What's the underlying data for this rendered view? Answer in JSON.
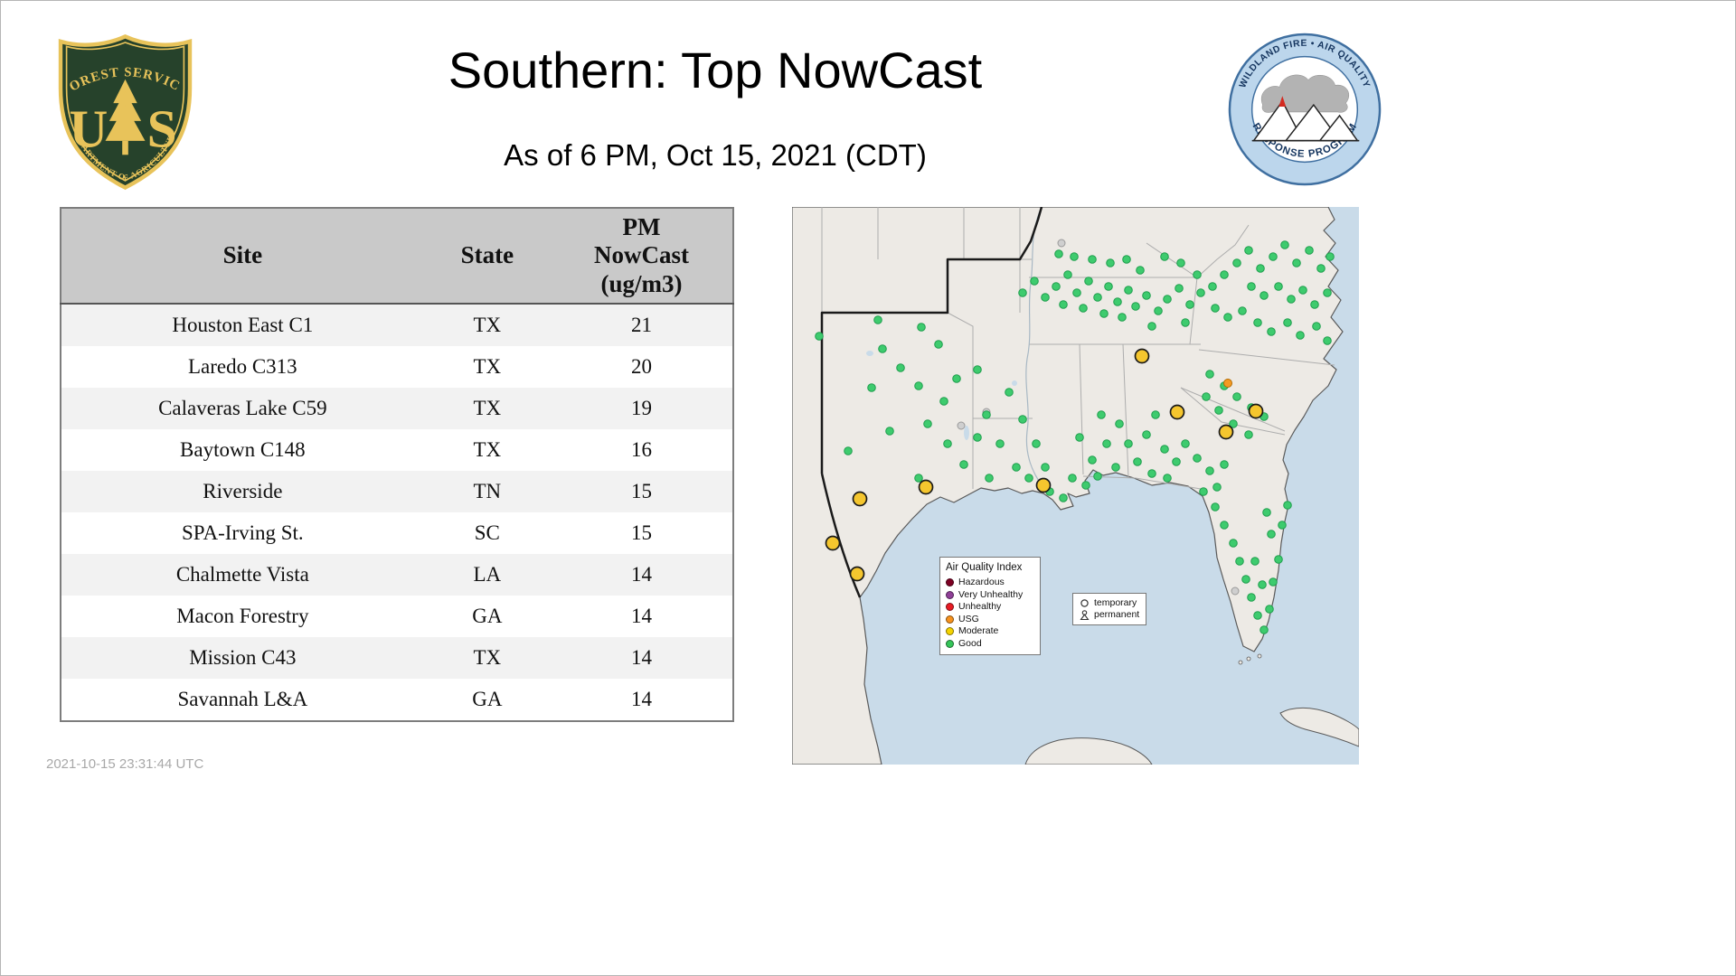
{
  "header": {
    "title": "Southern: Top NowCast",
    "subtitle": "As of  6 PM, Oct 15, 2021 (CDT)"
  },
  "footer": {
    "timestamp": "2021-10-15 23:31:44 UTC"
  },
  "fs_logo": {
    "arc_top": "FOREST SERVICE",
    "letter_u": "U",
    "letter_s": "S",
    "arc_bottom": "DEPARTMENT OF AGRICULTURE"
  },
  "aq_logo": {
    "arc_top": "WILDLAND FIRE • AIR QUALITY",
    "arc_bottom": "RESPONSE PROGRAM"
  },
  "table": {
    "columns": [
      "Site",
      "State",
      "PM\nNowCast\n(ug/m3)"
    ],
    "rows": [
      [
        "Houston East C1",
        "TX",
        "21"
      ],
      [
        "Laredo C313",
        "TX",
        "20"
      ],
      [
        "Calaveras Lake C59",
        "TX",
        "19"
      ],
      [
        "Baytown C148",
        "TX",
        "16"
      ],
      [
        "Riverside",
        "TN",
        "15"
      ],
      [
        "SPA-Irving St.",
        "SC",
        "15"
      ],
      [
        "Chalmette Vista",
        "LA",
        "14"
      ],
      [
        "Macon Forestry",
        "GA",
        "14"
      ],
      [
        "Mission C43",
        "TX",
        "14"
      ],
      [
        "Savannah L&A",
        "GA",
        "14"
      ]
    ]
  },
  "map": {
    "colors": {
      "ocean": "#c9dbe9",
      "land": "#edeae5",
      "region_border": "#1a1a1a",
      "state_border": "#adadad"
    },
    "legend": {
      "title": "Air Quality Index",
      "items": [
        {
          "label": "Hazardous",
          "color": "#7e0023"
        },
        {
          "label": "Very Unhealthy",
          "color": "#8f3f97"
        },
        {
          "label": "Unhealthy",
          "color": "#e81b23"
        },
        {
          "label": "USG",
          "color": "#f7921e"
        },
        {
          "label": "Moderate",
          "color": "#f5d300"
        },
        {
          "label": "Good",
          "color": "#35c559"
        }
      ]
    },
    "marker_legend": {
      "temporary": "temporary",
      "permanent": "permanent"
    },
    "sites": {
      "good": [
        [
          95,
          125
        ],
        [
          30,
          143
        ],
        [
          100,
          157
        ],
        [
          143,
          133
        ],
        [
          162,
          152
        ],
        [
          120,
          178
        ],
        [
          88,
          200
        ],
        [
          140,
          198
        ],
        [
          168,
          215
        ],
        [
          182,
          190
        ],
        [
          150,
          240
        ],
        [
          108,
          248
        ],
        [
          62,
          270
        ],
        [
          172,
          262
        ],
        [
          190,
          285
        ],
        [
          140,
          300
        ],
        [
          205,
          180
        ],
        [
          215,
          230
        ],
        [
          230,
          262
        ],
        [
          248,
          288
        ],
        [
          262,
          300
        ],
        [
          280,
          288
        ],
        [
          270,
          262
        ],
        [
          255,
          235
        ],
        [
          240,
          205
        ],
        [
          285,
          315
        ],
        [
          300,
          322
        ],
        [
          218,
          300
        ],
        [
          205,
          255
        ],
        [
          318,
          255
        ],
        [
          332,
          280
        ],
        [
          348,
          262
        ],
        [
          342,
          230
        ],
        [
          362,
          240
        ],
        [
          372,
          262
        ],
        [
          358,
          288
        ],
        [
          382,
          282
        ],
        [
          392,
          252
        ],
        [
          402,
          230
        ],
        [
          412,
          268
        ],
        [
          425,
          282
        ],
        [
          398,
          295
        ],
        [
          415,
          300
        ],
        [
          255,
          95
        ],
        [
          268,
          82
        ],
        [
          280,
          100
        ],
        [
          292,
          88
        ],
        [
          305,
          75
        ],
        [
          300,
          108
        ],
        [
          315,
          95
        ],
        [
          328,
          82
        ],
        [
          322,
          112
        ],
        [
          338,
          100
        ],
        [
          350,
          88
        ],
        [
          345,
          118
        ],
        [
          360,
          105
        ],
        [
          372,
          92
        ],
        [
          365,
          122
        ],
        [
          380,
          110
        ],
        [
          392,
          98
        ],
        [
          385,
          70
        ],
        [
          370,
          58
        ],
        [
          352,
          62
        ],
        [
          332,
          58
        ],
        [
          312,
          55
        ],
        [
          295,
          52
        ],
        [
          405,
          115
        ],
        [
          398,
          132
        ],
        [
          415,
          102
        ],
        [
          428,
          90
        ],
        [
          440,
          108
        ],
        [
          435,
          128
        ],
        [
          452,
          95
        ],
        [
          448,
          75
        ],
        [
          430,
          62
        ],
        [
          412,
          55
        ],
        [
          465,
          88
        ],
        [
          478,
          75
        ],
        [
          492,
          62
        ],
        [
          505,
          48
        ],
        [
          518,
          68
        ],
        [
          532,
          55
        ],
        [
          545,
          42
        ],
        [
          558,
          62
        ],
        [
          572,
          48
        ],
        [
          585,
          68
        ],
        [
          595,
          55
        ],
        [
          508,
          88
        ],
        [
          522,
          98
        ],
        [
          538,
          88
        ],
        [
          552,
          102
        ],
        [
          565,
          92
        ],
        [
          578,
          108
        ],
        [
          592,
          95
        ],
        [
          468,
          112
        ],
        [
          482,
          122
        ],
        [
          498,
          115
        ],
        [
          515,
          128
        ],
        [
          530,
          138
        ],
        [
          548,
          128
        ],
        [
          562,
          142
        ],
        [
          580,
          132
        ],
        [
          592,
          148
        ],
        [
          462,
          185
        ],
        [
          478,
          198
        ],
        [
          492,
          210
        ],
        [
          508,
          222
        ],
        [
          522,
          232
        ],
        [
          472,
          225
        ],
        [
          488,
          240
        ],
        [
          505,
          252
        ],
        [
          458,
          210
        ],
        [
          435,
          262
        ],
        [
          448,
          278
        ],
        [
          462,
          292
        ],
        [
          478,
          285
        ],
        [
          455,
          315
        ],
        [
          468,
          332
        ],
        [
          478,
          352
        ],
        [
          470,
          310
        ],
        [
          488,
          372
        ],
        [
          495,
          392
        ],
        [
          502,
          412
        ],
        [
          508,
          432
        ],
        [
          515,
          452
        ],
        [
          522,
          468
        ],
        [
          528,
          445
        ],
        [
          520,
          418
        ],
        [
          512,
          392
        ],
        [
          532,
          415
        ],
        [
          538,
          390
        ],
        [
          530,
          362
        ],
        [
          542,
          352
        ],
        [
          525,
          338
        ],
        [
          548,
          330
        ],
        [
          310,
          300
        ],
        [
          325,
          308
        ],
        [
          338,
          298
        ]
      ],
      "moderate": [
        [
          387,
          165
        ],
        [
          426,
          227
        ],
        [
          480,
          249
        ],
        [
          513,
          226
        ],
        [
          148,
          310
        ],
        [
          75,
          323
        ],
        [
          45,
          372
        ],
        [
          72,
          406
        ],
        [
          278,
          308
        ]
      ],
      "usg": [
        [
          482,
          195
        ]
      ],
      "inactive": [
        [
          215,
          227
        ],
        [
          187,
          242
        ],
        [
          298,
          40
        ],
        [
          490,
          425
        ]
      ]
    }
  }
}
